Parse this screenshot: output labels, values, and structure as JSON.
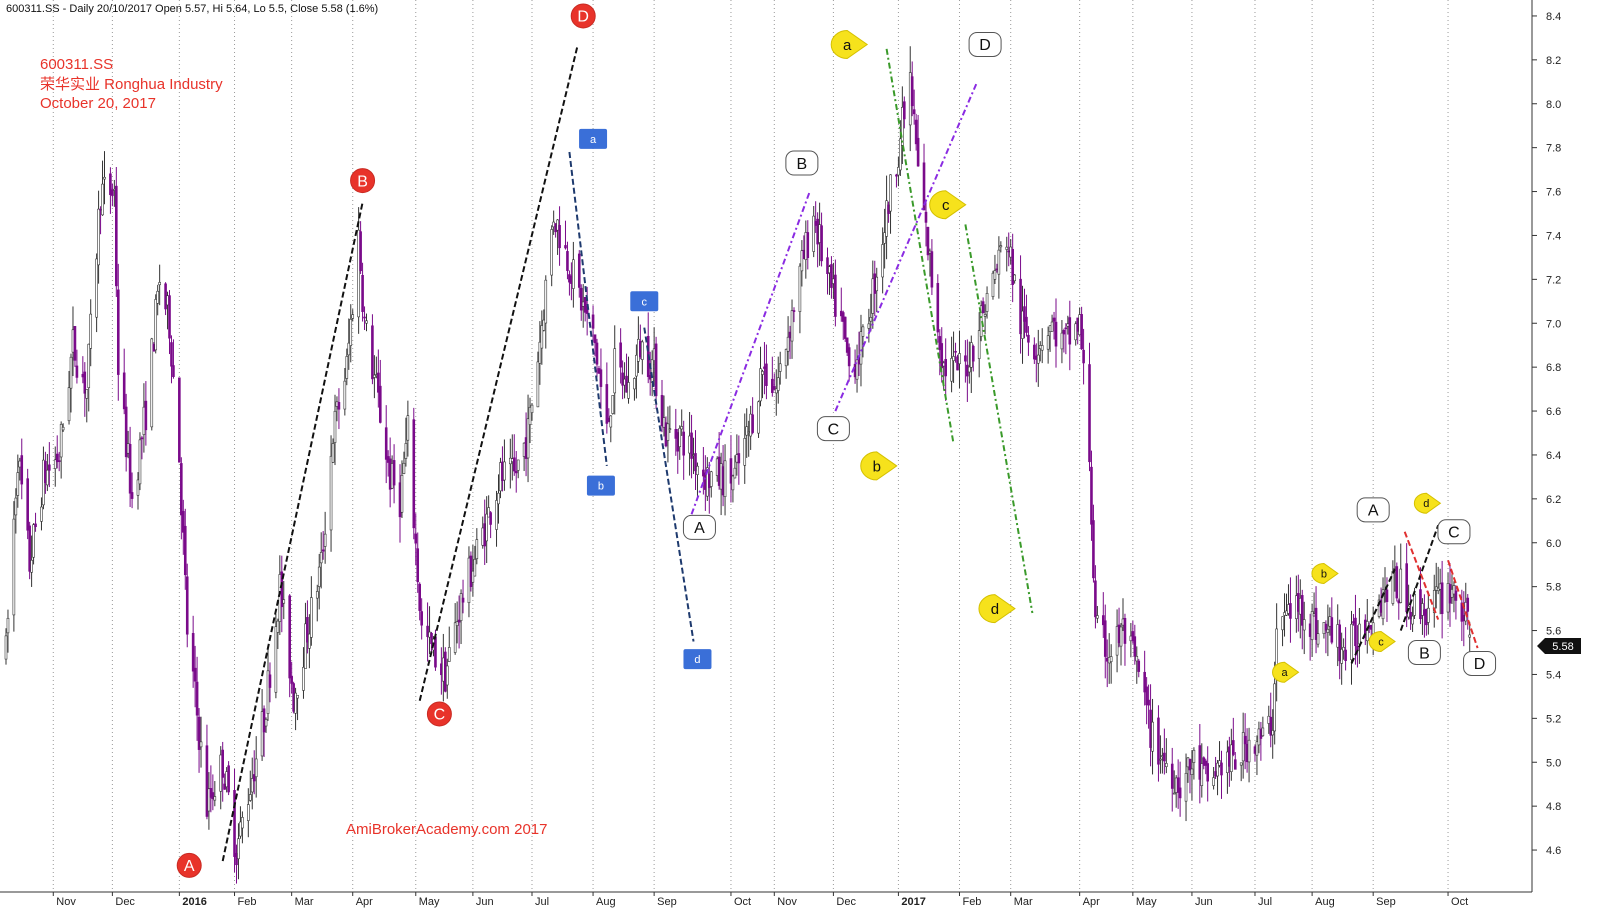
{
  "header": {
    "text": "600311.SS - Daily 20/10/2017 Open 5.57, Hi 5.64, Lo 5.5, Close 5.58 (1.6%)"
  },
  "title_block": {
    "line1": "600311.SS",
    "line2": "荣华实业  Ronghua Industry",
    "line3": "October 20, 2017"
  },
  "watermark": "AmiBrokerAcademy.com 2017",
  "price_tag": "5.58",
  "colors": {
    "up": "#333333",
    "down": "#7a0a8a",
    "red_label": "#e8332a",
    "blue_label": "#3a6fd8",
    "yellow_label": "#f6e21c",
    "grid": "#9a9a9a",
    "black_trend": "#111111",
    "purple_trend": "#8a2be2",
    "navy_trend": "#1e3a6e",
    "green_trend": "#3a9a2a",
    "red_trend": "#e03030"
  },
  "chart_data": {
    "type": "candlestick",
    "ylim": [
      4.5,
      8.5
    ],
    "y_ticks": [
      4.6,
      4.8,
      5.0,
      5.2,
      5.4,
      5.6,
      5.8,
      6.0,
      6.2,
      6.4,
      6.6,
      6.8,
      7.0,
      7.2,
      7.4,
      7.6,
      7.8,
      8.0,
      8.2,
      8.4
    ],
    "x_ticks": [
      {
        "d": "2015-11-01",
        "label": "Nov",
        "bold": false
      },
      {
        "d": "2015-12-01",
        "label": "Dec",
        "bold": false
      },
      {
        "d": "2016-01-04",
        "label": "2016",
        "bold": true
      },
      {
        "d": "2016-02-01",
        "label": "Feb",
        "bold": false
      },
      {
        "d": "2016-03-01",
        "label": "Mar",
        "bold": false
      },
      {
        "d": "2016-04-01",
        "label": "Apr",
        "bold": false
      },
      {
        "d": "2016-05-03",
        "label": "May",
        "bold": false
      },
      {
        "d": "2016-06-01",
        "label": "Jun",
        "bold": false
      },
      {
        "d": "2016-07-01",
        "label": "Jul",
        "bold": false
      },
      {
        "d": "2016-08-01",
        "label": "Aug",
        "bold": false
      },
      {
        "d": "2016-09-01",
        "label": "Sep",
        "bold": false
      },
      {
        "d": "2016-10-10",
        "label": "Oct",
        "bold": false
      },
      {
        "d": "2016-11-01",
        "label": "Nov",
        "bold": false
      },
      {
        "d": "2016-12-01",
        "label": "Dec",
        "bold": false
      },
      {
        "d": "2017-01-03",
        "label": "2017",
        "bold": true
      },
      {
        "d": "2017-02-03",
        "label": "Feb",
        "bold": false
      },
      {
        "d": "2017-03-01",
        "label": "Mar",
        "bold": false
      },
      {
        "d": "2017-04-05",
        "label": "Apr",
        "bold": false
      },
      {
        "d": "2017-05-02",
        "label": "May",
        "bold": false
      },
      {
        "d": "2017-06-01",
        "label": "Jun",
        "bold": false
      },
      {
        "d": "2017-07-03",
        "label": "Jul",
        "bold": false
      },
      {
        "d": "2017-08-01",
        "label": "Aug",
        "bold": false
      },
      {
        "d": "2017-09-01",
        "label": "Sep",
        "bold": false
      },
      {
        "d": "2017-10-09",
        "label": "Oct",
        "bold": false
      }
    ],
    "price_path": [
      [
        "2015-10-08",
        5.5
      ],
      [
        "2015-10-14",
        6.4
      ],
      [
        "2015-10-20",
        5.9
      ],
      [
        "2015-10-27",
        6.3
      ],
      [
        "2015-11-04",
        6.4
      ],
      [
        "2015-11-11",
        6.9
      ],
      [
        "2015-11-18",
        6.7
      ],
      [
        "2015-11-25",
        7.6
      ],
      [
        "2015-12-02",
        7.6
      ],
      [
        "2015-12-04",
        6.8
      ],
      [
        "2015-12-11",
        6.2
      ],
      [
        "2015-12-18",
        6.6
      ],
      [
        "2015-12-25",
        7.2
      ],
      [
        "2015-12-30",
        7.0
      ],
      [
        "2016-01-04",
        6.4
      ],
      [
        "2016-01-08",
        5.6
      ],
      [
        "2016-01-12",
        5.3
      ],
      [
        "2016-01-18",
        4.8
      ],
      [
        "2016-01-26",
        5.0
      ],
      [
        "2016-02-02",
        4.6
      ],
      [
        "2016-02-16",
        5.2
      ],
      [
        "2016-02-24",
        5.8
      ],
      [
        "2016-03-02",
        5.3
      ],
      [
        "2016-03-09",
        5.6
      ],
      [
        "2016-03-16",
        5.9
      ],
      [
        "2016-03-22",
        6.5
      ],
      [
        "2016-03-29",
        6.8
      ],
      [
        "2016-04-04",
        7.4
      ],
      [
        "2016-04-07",
        7.0
      ],
      [
        "2016-04-13",
        6.7
      ],
      [
        "2016-04-20",
        6.3
      ],
      [
        "2016-04-25",
        6.2
      ],
      [
        "2016-04-29",
        6.5
      ],
      [
        "2016-05-06",
        5.6
      ],
      [
        "2016-05-12",
        5.5
      ],
      [
        "2016-05-18",
        5.4
      ],
      [
        "2016-05-25",
        5.7
      ],
      [
        "2016-06-01",
        5.9
      ],
      [
        "2016-06-08",
        6.1
      ],
      [
        "2016-06-15",
        6.3
      ],
      [
        "2016-06-22",
        6.3
      ],
      [
        "2016-06-29",
        6.5
      ],
      [
        "2016-07-06",
        7.0
      ],
      [
        "2016-07-12",
        7.5
      ],
      [
        "2016-07-19",
        7.3
      ],
      [
        "2016-07-26",
        7.1
      ],
      [
        "2016-08-02",
        6.9
      ],
      [
        "2016-08-08",
        6.5
      ],
      [
        "2016-08-12",
        6.8
      ],
      [
        "2016-08-19",
        6.7
      ],
      [
        "2016-08-25",
        6.9
      ],
      [
        "2016-09-01",
        6.8
      ],
      [
        "2016-09-07",
        6.5
      ],
      [
        "2016-09-14",
        6.5
      ],
      [
        "2016-09-21",
        6.4
      ],
      [
        "2016-09-28",
        6.3
      ],
      [
        "2016-10-12",
        6.3
      ],
      [
        "2016-10-19",
        6.5
      ],
      [
        "2016-10-26",
        6.8
      ],
      [
        "2016-11-02",
        6.7
      ],
      [
        "2016-11-09",
        7.0
      ],
      [
        "2016-11-16",
        7.3
      ],
      [
        "2016-11-21",
        7.5
      ],
      [
        "2016-11-28",
        7.2
      ],
      [
        "2016-12-05",
        7.0
      ],
      [
        "2016-12-09",
        6.8
      ],
      [
        "2016-12-16",
        6.9
      ],
      [
        "2016-12-22",
        7.2
      ],
      [
        "2016-12-28",
        7.5
      ],
      [
        "2017-01-03",
        7.8
      ],
      [
        "2017-01-09",
        8.1
      ],
      [
        "2017-01-13",
        7.7
      ],
      [
        "2017-01-20",
        7.2
      ],
      [
        "2017-01-26",
        6.8
      ],
      [
        "2017-02-06",
        6.8
      ],
      [
        "2017-02-13",
        7.0
      ],
      [
        "2017-02-20",
        7.2
      ],
      [
        "2017-02-27",
        7.4
      ],
      [
        "2017-03-06",
        7.0
      ],
      [
        "2017-03-14",
        6.9
      ],
      [
        "2017-03-21",
        7.0
      ],
      [
        "2017-03-28",
        6.9
      ],
      [
        "2017-04-05",
        7.0
      ],
      [
        "2017-04-10",
        6.4
      ],
      [
        "2017-04-13",
        5.6
      ],
      [
        "2017-04-20",
        5.5
      ],
      [
        "2017-04-27",
        5.6
      ],
      [
        "2017-05-05",
        5.4
      ],
      [
        "2017-05-12",
        5.1
      ],
      [
        "2017-05-19",
        5.0
      ],
      [
        "2017-05-26",
        4.9
      ],
      [
        "2017-06-02",
        5.0
      ],
      [
        "2017-06-09",
        4.9
      ],
      [
        "2017-06-16",
        5.0
      ],
      [
        "2017-06-23",
        5.0
      ],
      [
        "2017-06-30",
        5.1
      ],
      [
        "2017-07-07",
        5.1
      ],
      [
        "2017-07-12",
        5.2
      ],
      [
        "2017-07-14",
        5.6
      ],
      [
        "2017-07-21",
        5.7
      ],
      [
        "2017-07-28",
        5.7
      ],
      [
        "2017-08-04",
        5.6
      ],
      [
        "2017-08-11",
        5.6
      ],
      [
        "2017-08-18",
        5.5
      ],
      [
        "2017-08-25",
        5.6
      ],
      [
        "2017-09-01",
        5.7
      ],
      [
        "2017-09-08",
        5.8
      ],
      [
        "2017-09-15",
        5.8
      ],
      [
        "2017-09-22",
        5.7
      ],
      [
        "2017-09-29",
        5.7
      ],
      [
        "2017-10-11",
        5.8
      ],
      [
        "2017-10-16",
        5.7
      ],
      [
        "2017-10-20",
        5.58
      ]
    ],
    "last_close": 5.58,
    "last_bar": {
      "date": "2017-10-20",
      "open": 5.57,
      "high": 5.64,
      "low": 5.5,
      "close": 5.58
    },
    "trend_lines": [
      {
        "color": "black",
        "style": "dash",
        "from": [
          "2016-01-26",
          4.55
        ],
        "to": [
          "2016-04-06",
          7.55
        ]
      },
      {
        "color": "black",
        "style": "dash",
        "from": [
          "2016-05-05",
          5.28
        ],
        "to": [
          "2016-07-24",
          8.26
        ]
      },
      {
        "color": "navy",
        "style": "dash",
        "from": [
          "2016-07-20",
          7.78
        ],
        "to": [
          "2016-08-08",
          6.35
        ]
      },
      {
        "color": "navy",
        "style": "dash",
        "from": [
          "2016-08-27",
          6.98
        ],
        "to": [
          "2016-09-21",
          5.55
        ]
      },
      {
        "color": "purple",
        "style": "dashdot",
        "from": [
          "2016-09-20",
          6.13
        ],
        "to": [
          "2016-11-19",
          7.6
        ]
      },
      {
        "color": "purple",
        "style": "dashdot",
        "from": [
          "2016-12-02",
          6.6
        ],
        "to": [
          "2017-02-12",
          8.1
        ]
      },
      {
        "color": "green",
        "style": "dashdot",
        "from": [
          "2016-12-28",
          8.25
        ],
        "to": [
          "2017-01-31",
          6.45
        ]
      },
      {
        "color": "green",
        "style": "dashdot",
        "from": [
          "2017-02-06",
          7.45
        ],
        "to": [
          "2017-03-12",
          5.68
        ]
      },
      {
        "color": "black",
        "style": "dash",
        "from": [
          "2017-08-21",
          5.45
        ],
        "to": [
          "2017-09-12",
          5.88
        ]
      },
      {
        "color": "black",
        "style": "dash",
        "from": [
          "2017-09-15",
          5.6
        ],
        "to": [
          "2017-10-04",
          6.08
        ]
      },
      {
        "color": "red",
        "style": "dash",
        "from": [
          "2017-09-17",
          6.05
        ],
        "to": [
          "2017-10-04",
          5.65
        ]
      },
      {
        "color": "red",
        "style": "dash",
        "from": [
          "2017-10-09",
          5.92
        ],
        "to": [
          "2017-10-24",
          5.52
        ]
      }
    ],
    "annotations": [
      {
        "text": "A",
        "kind": "red-circle",
        "date": "2016-01-09",
        "price": 4.53
      },
      {
        "text": "B",
        "kind": "red-circle",
        "date": "2016-04-06",
        "price": 7.65
      },
      {
        "text": "C",
        "kind": "red-circle",
        "date": "2016-05-15",
        "price": 5.22
      },
      {
        "text": "D",
        "kind": "red-circle",
        "date": "2016-07-27",
        "price": 8.4
      },
      {
        "text": "a",
        "kind": "blue-box",
        "date": "2016-08-01",
        "price": 7.84
      },
      {
        "text": "b",
        "kind": "blue-box",
        "date": "2016-08-05",
        "price": 6.26
      },
      {
        "text": "c",
        "kind": "blue-box",
        "date": "2016-08-27",
        "price": 7.1
      },
      {
        "text": "d",
        "kind": "blue-box",
        "date": "2016-09-23",
        "price": 5.47
      },
      {
        "text": "A",
        "kind": "white-callout",
        "date": "2016-09-24",
        "price": 6.07
      },
      {
        "text": "B",
        "kind": "white-callout",
        "date": "2016-11-15",
        "price": 7.73
      },
      {
        "text": "C",
        "kind": "white-callout",
        "date": "2016-12-01",
        "price": 6.52
      },
      {
        "text": "D",
        "kind": "white-callout",
        "date": "2017-02-16",
        "price": 8.27
      },
      {
        "text": "a",
        "kind": "yellow-flag",
        "date": "2016-12-08",
        "price": 8.27
      },
      {
        "text": "b",
        "kind": "yellow-flag",
        "date": "2016-12-23",
        "price": 6.35
      },
      {
        "text": "c",
        "kind": "yellow-flag",
        "date": "2017-01-27",
        "price": 7.54
      },
      {
        "text": "d",
        "kind": "yellow-flag",
        "date": "2017-02-21",
        "price": 5.7
      },
      {
        "text": "A",
        "kind": "white-callout",
        "date": "2017-09-01",
        "price": 6.15
      },
      {
        "text": "B",
        "kind": "white-callout",
        "date": "2017-09-27",
        "price": 5.5
      },
      {
        "text": "C",
        "kind": "white-callout",
        "date": "2017-10-12",
        "price": 6.05
      },
      {
        "text": "D",
        "kind": "white-callout",
        "date": "2017-10-25",
        "price": 5.45
      },
      {
        "text": "a",
        "kind": "yellow-flag-small",
        "date": "2017-07-18",
        "price": 5.41
      },
      {
        "text": "b",
        "kind": "yellow-flag-small",
        "date": "2017-08-07",
        "price": 5.86
      },
      {
        "text": "c",
        "kind": "yellow-flag-small",
        "date": "2017-09-05",
        "price": 5.55
      },
      {
        "text": "d",
        "kind": "yellow-flag-small",
        "date": "2017-09-28",
        "price": 6.18
      }
    ]
  }
}
